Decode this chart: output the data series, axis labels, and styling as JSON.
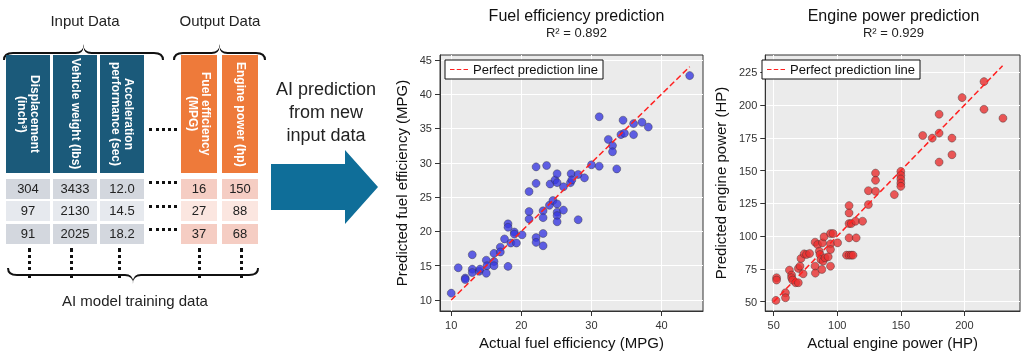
{
  "chart_data": [
    {
      "type": "other",
      "annotations": [
        "Input Data",
        "Output Data",
        "Displacement (inch³)",
        "Vehicle weight (lbs)",
        "Acceleration performance (sec)",
        "Fuel efficiency (MPG)",
        "Engine power (hp)",
        "304",
        "3433",
        "12.0",
        "16",
        "150",
        "97",
        "2130",
        "14.5",
        "27",
        "88",
        "91",
        "2025",
        "18.2",
        "37",
        "68",
        "AI model training data",
        "AI prediction from new input data"
      ]
    },
    {
      "type": "scatter",
      "title": "Fuel efficiency prediction",
      "subtitle": "R² = 0.892",
      "xlabel": "Actual fuel efficiency (MPG)",
      "ylabel": "Predicted fuel efficiency (MPG)",
      "xlim": [
        8.4,
        45.9
      ],
      "ylim": [
        8.4,
        45.7
      ],
      "xticks": [
        10,
        20,
        30,
        40
      ],
      "yticks": [
        10,
        15,
        20,
        25,
        30,
        35,
        40,
        45
      ],
      "grid": true,
      "legend": "top left",
      "series": [
        {
          "type": "scatter",
          "marker": "circle",
          "color": "#3a3ae0",
          "x": [
            10,
            11,
            12,
            12,
            13,
            13,
            13,
            14,
            14.1,
            15,
            15,
            15.1,
            16.1,
            16.1,
            16.1,
            17,
            17,
            17.6,
            18.1,
            18.1,
            18.1,
            18.5,
            19,
            19,
            19.3,
            20.1,
            21.1,
            21.1,
            21.1,
            22.1,
            22.1,
            22.1,
            22.1,
            23.1,
            23.1,
            23.1,
            23.1,
            23.6,
            24,
            24.1,
            24.5,
            24.8,
            25.1,
            25.1,
            25.1,
            25.1,
            25.1,
            25.1,
            26,
            26,
            27,
            27.1,
            27.2,
            28.1,
            28.1,
            29,
            30,
            31.1,
            31.1,
            32.4,
            33,
            33,
            33.6,
            34.2,
            34.5,
            34.7,
            36,
            36,
            37.2,
            38.1,
            44
          ],
          "values": [
            11,
            14.7,
            13.2,
            13,
            16.6,
            14.5,
            14,
            14.2,
            14.5,
            15.8,
            13.9,
            15,
            16.8,
            15.6,
            15,
            17.7,
            17,
            18.9,
            21.1,
            20.6,
            14.9,
            18.3,
            19.9,
            19.6,
            18.3,
            19.5,
            25.8,
            22.9,
            21.8,
            29.4,
            27,
            19.1,
            18.4,
            23,
            22,
            19.7,
            17.9,
            29.6,
            23.8,
            26.9,
            24.5,
            27.5,
            28.4,
            27.1,
            24,
            22.8,
            22.3,
            21.4,
            26.5,
            23.1,
            27.1,
            28.4,
            27.5,
            28.3,
            21.7,
            27.8,
            29.7,
            36.7,
            29.5,
            33.4,
            32.5,
            31.6,
            29.1,
            34.1,
            36.2,
            34.3,
            35.7,
            34.1,
            35.9,
            35.2,
            42.7
          ]
        },
        {
          "type": "line",
          "marker": "none",
          "name": "Perfect prediction line",
          "color": "#ff2020",
          "line_style": "dashed",
          "x": [
            10,
            44
          ],
          "values": [
            10,
            44
          ]
        }
      ]
    },
    {
      "type": "scatter",
      "title": "Engine power prediction",
      "subtitle": "R² = 0.929",
      "xlabel": "Actual engine power (HP)",
      "ylabel": "Predicted engine power (HP)",
      "xlim": [
        43.4,
        243.7
      ],
      "ylim": [
        42.9,
        238.2
      ],
      "xticks": [
        50,
        100,
        150,
        200
      ],
      "yticks": [
        50,
        75,
        100,
        125,
        150,
        175,
        200,
        225
      ],
      "grid": true,
      "legend": "top left",
      "series": [
        {
          "type": "scatter",
          "marker": "circle",
          "color": "#e83030",
          "x": [
            51.8,
            52.3,
            52.3,
            59.3,
            59.3,
            62.4,
            64.1,
            64.1,
            64.9,
            67.4,
            69.4,
            69.4,
            70.7,
            71.5,
            73.2,
            74,
            75.8,
            78.3,
            82.6,
            82.6,
            82.8,
            84.6,
            85.9,
            86.4,
            87.1,
            87.9,
            88.4,
            88.9,
            89.6,
            90.4,
            92.9,
            94.7,
            94.7,
            94.7,
            94.7,
            96.7,
            100.3,
            107.3,
            109.3,
            111,
            112.4,
            109.3,
            109.3,
            109.3,
            109.3,
            111,
            114.4,
            114.9,
            119.9,
            124.5,
            124.5,
            130.1,
            130.1,
            130.1,
            144.9,
            150,
            150,
            150,
            150,
            150,
            167.2,
            174.7,
            180.1,
            180.1,
            180.1,
            190.2,
            190.2,
            198.2,
            215.4,
            215.4,
            230.3
          ],
          "values": [
            51,
            68.3,
            66.5,
            56.8,
            53,
            74.1,
            70.3,
            68.3,
            66.5,
            64.5,
            64.5,
            75.4,
            77.1,
            83,
            71.3,
            86.5,
            86,
            86.8,
            95.4,
            77.1,
            71.8,
            93.6,
            88.5,
            86,
            82.2,
            74.6,
            94.9,
            80.9,
            99.5,
            83.5,
            84.2,
            94.1,
            89.8,
            102,
            77.1,
            102,
            94.9,
            85.5,
            85.5,
            85.5,
            85.5,
            98.7,
            123.3,
            117.7,
            109.6,
            109.6,
            111.4,
            98.7,
            111.4,
            124.1,
            134.7,
            148.1,
            142.6,
            134.2,
            131.7,
            149.4,
            146.4,
            143.6,
            140.5,
            138,
            176.8,
            174.8,
            193,
            178.6,
            156.5,
            174.8,
            162.1,
            205.7,
            217.9,
            196.8,
            190
          ]
        },
        {
          "type": "line",
          "marker": "none",
          "name": "Perfect prediction line",
          "color": "#ff2020",
          "line_style": "dashed",
          "x": [
            50,
            230
          ],
          "values": [
            50,
            230
          ]
        }
      ]
    }
  ]
}
